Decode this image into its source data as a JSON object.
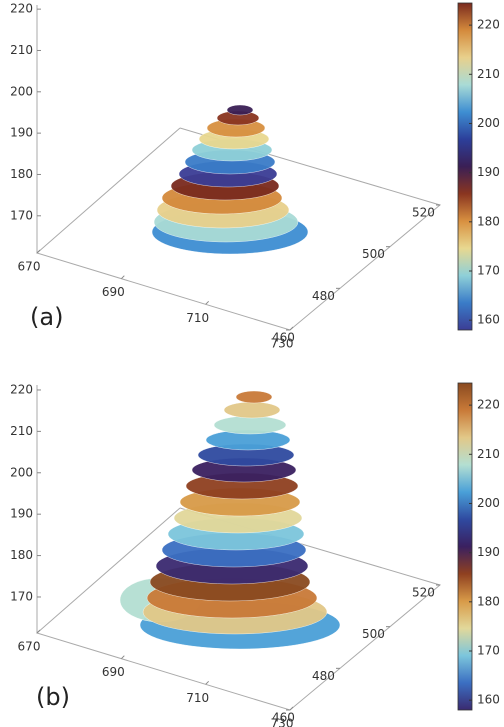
{
  "chart_data": [
    {
      "type": "surface3d",
      "panel_label": "(a)",
      "xlim": [
        670,
        730
      ],
      "xticks": [
        670,
        690,
        710,
        730
      ],
      "ylim": [
        460,
        520
      ],
      "yticks": [
        460,
        480,
        500,
        520
      ],
      "zlim": [
        161,
        221
      ],
      "zticks": [
        170,
        180,
        190,
        200,
        210,
        220
      ],
      "colorbar": {
        "clim": [
          158,
          224.5
        ],
        "ticks": [
          160,
          170,
          180,
          190,
          200,
          210,
          220
        ],
        "colors": [
          "#3b3d95",
          "#3a7cc8",
          "#8fd0d8",
          "#e8d890",
          "#d89040",
          "#8a3520",
          "#3a1f55",
          "#2c3f9a",
          "#3e8ed2",
          "#a9dbd6",
          "#e8d08c",
          "#d48a3c",
          "#7a2a1e"
        ]
      }
    },
    {
      "type": "surface3d",
      "panel_label": "(b)",
      "xlim": [
        670,
        730
      ],
      "xticks": [
        670,
        690,
        710,
        730
      ],
      "ylim": [
        460,
        520
      ],
      "yticks": [
        460,
        480,
        500,
        520
      ],
      "zlim": [
        161.3,
        221.2
      ],
      "zticks": [
        170,
        180,
        190,
        200,
        210,
        220
      ],
      "colorbar": {
        "clim": [
          158,
          224.5
        ],
        "ticks": [
          160,
          170,
          180,
          190,
          200,
          210,
          220
        ],
        "colors": [
          "#3a2a70",
          "#3b6fc2",
          "#7cc6dc",
          "#e2d89a",
          "#d89a48",
          "#8f4020",
          "#3a2060",
          "#2f4aa0",
          "#4aa0d8",
          "#b4dfd2",
          "#e2c888",
          "#c97a38",
          "#8a4a20"
        ]
      }
    }
  ]
}
